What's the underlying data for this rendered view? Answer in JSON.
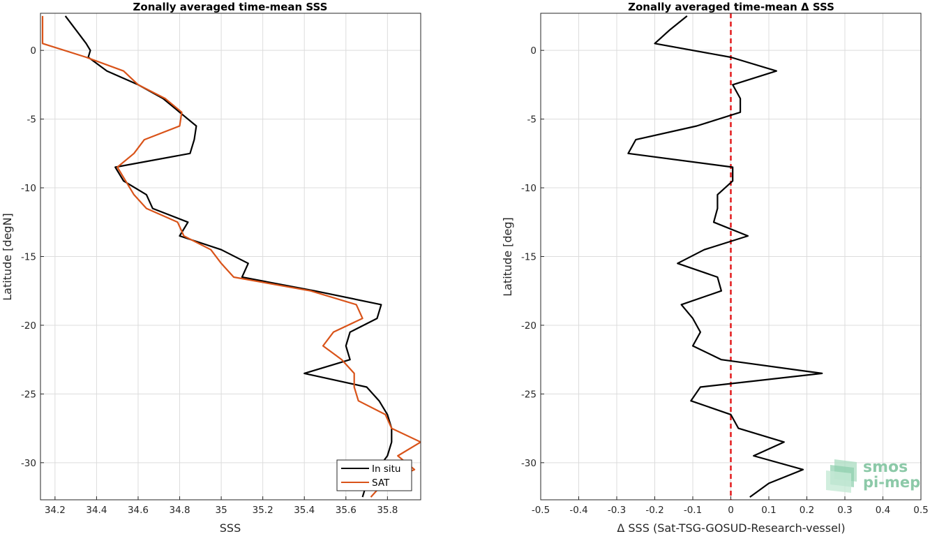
{
  "chart_data": [
    {
      "type": "line",
      "title": "Zonally averaged time-mean SSS",
      "xlabel": "SSS",
      "ylabel": "Latitude [degN]",
      "xlim": [
        34.13,
        35.96
      ],
      "ylim": [
        -32.7,
        2.7
      ],
      "xticks": [
        34.2,
        34.4,
        34.6,
        34.8,
        35,
        35.2,
        35.4,
        35.6,
        35.8
      ],
      "xtick_labels": [
        "34.2",
        "34.4",
        "34.6",
        "34.8",
        "35",
        "35.2",
        "35.4",
        "35.6",
        "35.8"
      ],
      "yticks": [
        0,
        -5,
        -10,
        -15,
        -20,
        -25,
        -30
      ],
      "ytick_labels": [
        "0",
        "-5",
        "-10",
        "-15",
        "-20",
        "-25",
        "-30"
      ],
      "grid": true,
      "legend_position": "bottom-right",
      "series": [
        {
          "name": "In situ",
          "color": "#000000",
          "points": [
            [
              34.25,
              2.5
            ],
            [
              34.3,
              1.5
            ],
            [
              34.35,
              0.5
            ],
            [
              34.37,
              0
            ],
            [
              34.36,
              -0.5
            ],
            [
              34.45,
              -1.5
            ],
            [
              34.6,
              -2.5
            ],
            [
              34.72,
              -3.5
            ],
            [
              34.8,
              -4.5
            ],
            [
              34.88,
              -5.5
            ],
            [
              34.87,
              -6.5
            ],
            [
              34.85,
              -7.5
            ],
            [
              34.49,
              -8.5
            ],
            [
              34.53,
              -9.5
            ],
            [
              34.64,
              -10.5
            ],
            [
              34.67,
              -11.5
            ],
            [
              34.84,
              -12.5
            ],
            [
              34.8,
              -13.5
            ],
            [
              35.0,
              -14.5
            ],
            [
              35.13,
              -15.5
            ],
            [
              35.1,
              -16.5
            ],
            [
              35.45,
              -17.5
            ],
            [
              35.77,
              -18.5
            ],
            [
              35.75,
              -19.5
            ],
            [
              35.62,
              -20.5
            ],
            [
              35.6,
              -21.5
            ],
            [
              35.62,
              -22.5
            ],
            [
              35.4,
              -23.5
            ],
            [
              35.7,
              -24.5
            ],
            [
              35.76,
              -25.5
            ],
            [
              35.8,
              -26.5
            ],
            [
              35.82,
              -27.5
            ],
            [
              35.82,
              -28.5
            ],
            [
              35.8,
              -29.5
            ],
            [
              35.75,
              -30.5
            ],
            [
              35.7,
              -31.5
            ],
            [
              35.68,
              -32.5
            ]
          ]
        },
        {
          "name": "SAT",
          "color": "#d95319",
          "points": [
            [
              34.14,
              2.5
            ],
            [
              34.14,
              1.5
            ],
            [
              34.14,
              0.5
            ],
            [
              34.35,
              -0.5
            ],
            [
              34.53,
              -1.5
            ],
            [
              34.6,
              -2.5
            ],
            [
              34.73,
              -3.5
            ],
            [
              34.81,
              -4.5
            ],
            [
              34.8,
              -5.5
            ],
            [
              34.63,
              -6.5
            ],
            [
              34.58,
              -7.5
            ],
            [
              34.5,
              -8.5
            ],
            [
              34.54,
              -9.5
            ],
            [
              34.58,
              -10.5
            ],
            [
              34.64,
              -11.5
            ],
            [
              34.79,
              -12.5
            ],
            [
              34.82,
              -13.5
            ],
            [
              34.95,
              -14.5
            ],
            [
              35.0,
              -15.5
            ],
            [
              35.06,
              -16.5
            ],
            [
              35.43,
              -17.5
            ],
            [
              35.65,
              -18.5
            ],
            [
              35.68,
              -19.5
            ],
            [
              35.54,
              -20.5
            ],
            [
              35.49,
              -21.5
            ],
            [
              35.58,
              -22.5
            ],
            [
              35.64,
              -23.5
            ],
            [
              35.64,
              -24.5
            ],
            [
              35.66,
              -25.5
            ],
            [
              35.79,
              -26.5
            ],
            [
              35.82,
              -27.5
            ],
            [
              35.96,
              -28.5
            ],
            [
              35.85,
              -29.5
            ],
            [
              35.93,
              -30.5
            ],
            [
              35.78,
              -31.5
            ],
            [
              35.72,
              -32.5
            ]
          ]
        }
      ]
    },
    {
      "type": "line",
      "title": "Zonally averaged time-mean Δ SSS",
      "xlabel": "Δ SSS (Sat-TSG-GOSUD-Research-vessel)",
      "ylabel": "Latitude [deg]",
      "xlim": [
        -0.5,
        0.5
      ],
      "ylim": [
        -32.7,
        2.7
      ],
      "xticks": [
        -0.5,
        -0.4,
        -0.3,
        -0.2,
        -0.1,
        0,
        0.1,
        0.2,
        0.3,
        0.4,
        0.5
      ],
      "xtick_labels": [
        "-0.5",
        "-0.4",
        "-0.3",
        "-0.2",
        "-0.1",
        "0",
        "0.1",
        "0.2",
        "0.3",
        "0.4",
        "0.5"
      ],
      "yticks": [
        0,
        -5,
        -10,
        -15,
        -20,
        -25,
        -30
      ],
      "ytick_labels": [
        "0",
        "-5",
        "-10",
        "-15",
        "-20",
        "-25",
        "-30"
      ],
      "grid": true,
      "reference_line": {
        "x": 0,
        "color": "#e31a1c",
        "style": "dashed"
      },
      "series": [
        {
          "color": "#000000",
          "points": [
            [
              -0.115,
              2.5
            ],
            [
              -0.16,
              1.5
            ],
            [
              -0.2,
              0.5
            ],
            [
              0.0,
              -0.5
            ],
            [
              0.12,
              -1.5
            ],
            [
              0.005,
              -2.5
            ],
            [
              0.025,
              -3.5
            ],
            [
              0.025,
              -4.5
            ],
            [
              -0.09,
              -5.5
            ],
            [
              -0.25,
              -6.5
            ],
            [
              -0.27,
              -7.5
            ],
            [
              0.005,
              -8.5
            ],
            [
              0.005,
              -9.5
            ],
            [
              -0.035,
              -10.5
            ],
            [
              -0.035,
              -11.5
            ],
            [
              -0.045,
              -12.5
            ],
            [
              0.045,
              -13.5
            ],
            [
              -0.07,
              -14.5
            ],
            [
              -0.14,
              -15.5
            ],
            [
              -0.035,
              -16.5
            ],
            [
              -0.025,
              -17.5
            ],
            [
              -0.13,
              -18.5
            ],
            [
              -0.1,
              -19.5
            ],
            [
              -0.08,
              -20.5
            ],
            [
              -0.1,
              -21.5
            ],
            [
              -0.025,
              -22.5
            ],
            [
              0.24,
              -23.5
            ],
            [
              -0.08,
              -24.5
            ],
            [
              -0.105,
              -25.5
            ],
            [
              0.0,
              -26.5
            ],
            [
              0.02,
              -27.5
            ],
            [
              0.14,
              -28.5
            ],
            [
              0.06,
              -29.5
            ],
            [
              0.19,
              -30.5
            ],
            [
              0.1,
              -31.5
            ],
            [
              0.05,
              -32.5
            ]
          ]
        }
      ]
    }
  ],
  "legend": {
    "items": [
      {
        "label": "In situ",
        "color": "#000000"
      },
      {
        "label": "SAT",
        "color": "#d95319"
      }
    ]
  },
  "logo": {
    "line1": "smos",
    "line2": "pi-mep"
  }
}
